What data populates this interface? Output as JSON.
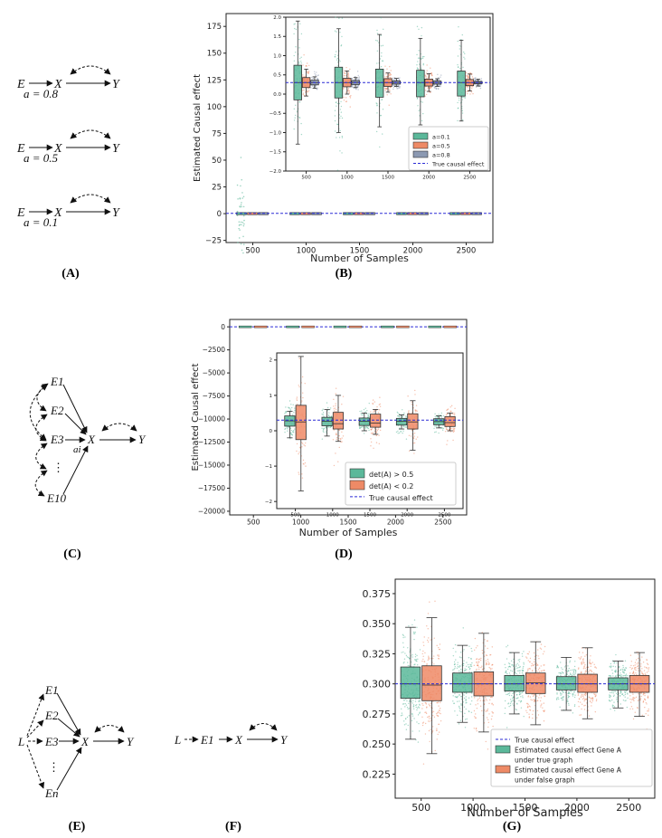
{
  "panels": {
    "A": "(A)",
    "B": "(B)",
    "C": "(C)",
    "D": "(D)",
    "E": "(E)",
    "F": "(F)",
    "G": "(G)"
  },
  "graph_a": {
    "nodes": [
      "E",
      "X",
      "Y"
    ],
    "settings": [
      "a = 0.8",
      "a = 0.5",
      "a = 0.1"
    ]
  },
  "graph_c": {
    "nodes": [
      "E1",
      "E2",
      "E3",
      "⋮",
      "E10",
      "X",
      "Y"
    ],
    "edge_label": "ai"
  },
  "graph_e": {
    "nodes": [
      "E1",
      "E2",
      "E3",
      "⋮",
      "En",
      "L",
      "X",
      "Y"
    ]
  },
  "graph_f": {
    "nodes": [
      "L",
      "E1",
      "X",
      "Y"
    ]
  },
  "colors": {
    "green": "#5bb89a",
    "orange": "#ee8a66",
    "gray": "#8c99b2",
    "true_line": "#2b2bd6",
    "outline": "#333333"
  },
  "chart_data": [
    {
      "id": "B",
      "type": "box",
      "xlabel": "Number of Samples",
      "ylabel": "Estimated Causal effect",
      "categories": [
        500,
        1000,
        1500,
        2000,
        2500
      ],
      "xticks": [
        "500",
        "1000",
        "1500",
        "2000",
        "2500"
      ],
      "ylim": [
        -27,
        187
      ],
      "yticks": [
        "175",
        "150",
        "125",
        "100",
        "75",
        "50",
        "25",
        "0",
        "−25"
      ],
      "true_effect": 0.3,
      "series": [
        {
          "name": "a=0.1",
          "median": [
            0.3,
            0.3,
            0.3,
            0.3,
            0.3
          ]
        },
        {
          "name": "a=0.5",
          "median": [
            0.3,
            0.3,
            0.3,
            0.3,
            0.3
          ]
        },
        {
          "name": "a=0.8",
          "median": [
            0.3,
            0.3,
            0.3,
            0.3,
            0.3
          ]
        }
      ],
      "inset": {
        "ylim": [
          -2.0,
          2.0
        ],
        "yticks": [
          "2.0",
          "1.5",
          "1.0",
          "0.5",
          "0.0",
          "−0.5",
          "−1.0",
          "−1.5",
          "−2.0"
        ],
        "xticks": [
          "500",
          "1000",
          "1500",
          "2000",
          "2500"
        ],
        "series": [
          {
            "name": "a=0.1",
            "q1": [
              -0.15,
              -0.1,
              -0.08,
              -0.07,
              -0.05
            ],
            "q3": [
              0.75,
              0.7,
              0.65,
              0.62,
              0.6
            ],
            "median": [
              0.3,
              0.3,
              0.3,
              0.3,
              0.3
            ],
            "low": [
              -1.3,
              -1.0,
              -0.85,
              -0.8,
              -0.7
            ],
            "high": [
              1.9,
              1.7,
              1.55,
              1.45,
              1.4
            ]
          },
          {
            "name": "a=0.5",
            "q1": [
              0.17,
              0.19,
              0.2,
              0.21,
              0.22
            ],
            "q3": [
              0.43,
              0.41,
              0.4,
              0.39,
              0.38
            ],
            "median": [
              0.3,
              0.3,
              0.3,
              0.3,
              0.3
            ],
            "low": [
              -0.05,
              0.0,
              0.05,
              0.07,
              0.08
            ],
            "high": [
              0.65,
              0.6,
              0.55,
              0.53,
              0.52
            ]
          },
          {
            "name": "a=0.8",
            "q1": [
              0.24,
              0.25,
              0.26,
              0.26,
              0.27
            ],
            "q3": [
              0.36,
              0.35,
              0.34,
              0.34,
              0.33
            ],
            "median": [
              0.3,
              0.3,
              0.3,
              0.3,
              0.3
            ],
            "low": [
              0.15,
              0.17,
              0.2,
              0.2,
              0.21
            ],
            "high": [
              0.45,
              0.43,
              0.41,
              0.4,
              0.39
            ]
          }
        ],
        "legend": [
          "a=0.1",
          "a=0.5",
          "a=0.8",
          "True causal effect"
        ]
      }
    },
    {
      "id": "D",
      "type": "box",
      "xlabel": "Number of Samples",
      "ylabel": "Estimated Causal effect",
      "categories": [
        500,
        1000,
        1500,
        2000,
        2500
      ],
      "xticks": [
        "500",
        "1000",
        "1500",
        "2000",
        "2500"
      ],
      "ylim": [
        -20400,
        800
      ],
      "yticks": [
        "0",
        "−2500",
        "−5000",
        "−7500",
        "−10000",
        "−12500",
        "−15000",
        "−17500",
        "−20000"
      ],
      "true_effect": 0.3,
      "inset": {
        "ylim": [
          -2.2,
          2.2
        ],
        "yticks": [
          "2",
          "1",
          "0",
          "−1",
          "−2"
        ],
        "xticks": [
          "500",
          "1000",
          "1500",
          "2000",
          "2500"
        ],
        "series": [
          {
            "name": "det(A) > 0.5",
            "q1": [
              0.13,
              0.14,
              0.15,
              0.16,
              0.17
            ],
            "q3": [
              0.42,
              0.38,
              0.36,
              0.35,
              0.34
            ],
            "median": [
              0.28,
              0.27,
              0.27,
              0.27,
              0.26
            ],
            "low": [
              -0.2,
              -0.15,
              0.0,
              0.05,
              0.08
            ],
            "high": [
              0.55,
              0.6,
              0.5,
              0.45,
              0.42
            ]
          },
          {
            "name": "det(A) < 0.2",
            "q1": [
              -0.25,
              0.05,
              0.1,
              0.05,
              0.12
            ],
            "q3": [
              0.72,
              0.52,
              0.47,
              0.48,
              0.4
            ],
            "median": [
              0.25,
              0.2,
              0.22,
              0.25,
              0.23
            ],
            "low": [
              -1.7,
              -0.3,
              -0.1,
              -0.55,
              0.0
            ],
            "high": [
              2.1,
              1.0,
              0.6,
              0.85,
              0.5
            ]
          }
        ],
        "legend": [
          "det(A) > 0.5",
          "det(A) < 0.2",
          "True causal effect"
        ]
      }
    },
    {
      "id": "G",
      "type": "box",
      "xlabel": "Number of Samples",
      "ylabel": "",
      "categories": [
        500,
        1000,
        1500,
        2000,
        2500
      ],
      "xticks": [
        "500",
        "1000",
        "1500",
        "2000",
        "2500"
      ],
      "ylim": [
        0.205,
        0.387
      ],
      "yticks": [
        "0.375",
        "0.350",
        "0.325",
        "0.300",
        "0.275",
        "0.250",
        "0.225"
      ],
      "true_effect": 0.3,
      "series": [
        {
          "name": "Estimated causal effect Gene A under true graph",
          "q1": [
            0.288,
            0.293,
            0.294,
            0.295,
            0.295
          ],
          "q3": [
            0.314,
            0.309,
            0.307,
            0.306,
            0.305
          ],
          "median": [
            0.3,
            0.3,
            0.3,
            0.3,
            0.3
          ],
          "low": [
            0.254,
            0.268,
            0.275,
            0.278,
            0.28
          ],
          "high": [
            0.347,
            0.332,
            0.326,
            0.322,
            0.319
          ]
        },
        {
          "name": "Estimated causal effect Gene A under false graph",
          "q1": [
            0.286,
            0.29,
            0.292,
            0.293,
            0.293
          ],
          "q3": [
            0.315,
            0.31,
            0.309,
            0.308,
            0.307
          ],
          "median": [
            0.299,
            0.3,
            0.301,
            0.3,
            0.3
          ],
          "low": [
            0.242,
            0.26,
            0.266,
            0.271,
            0.273
          ],
          "high": [
            0.355,
            0.342,
            0.335,
            0.33,
            0.326
          ]
        }
      ],
      "legend": [
        "True causal effect",
        "Estimated causal effect Gene A\nunder true graph",
        "Estimated causal effect Gene A\nunder false graph"
      ]
    }
  ]
}
